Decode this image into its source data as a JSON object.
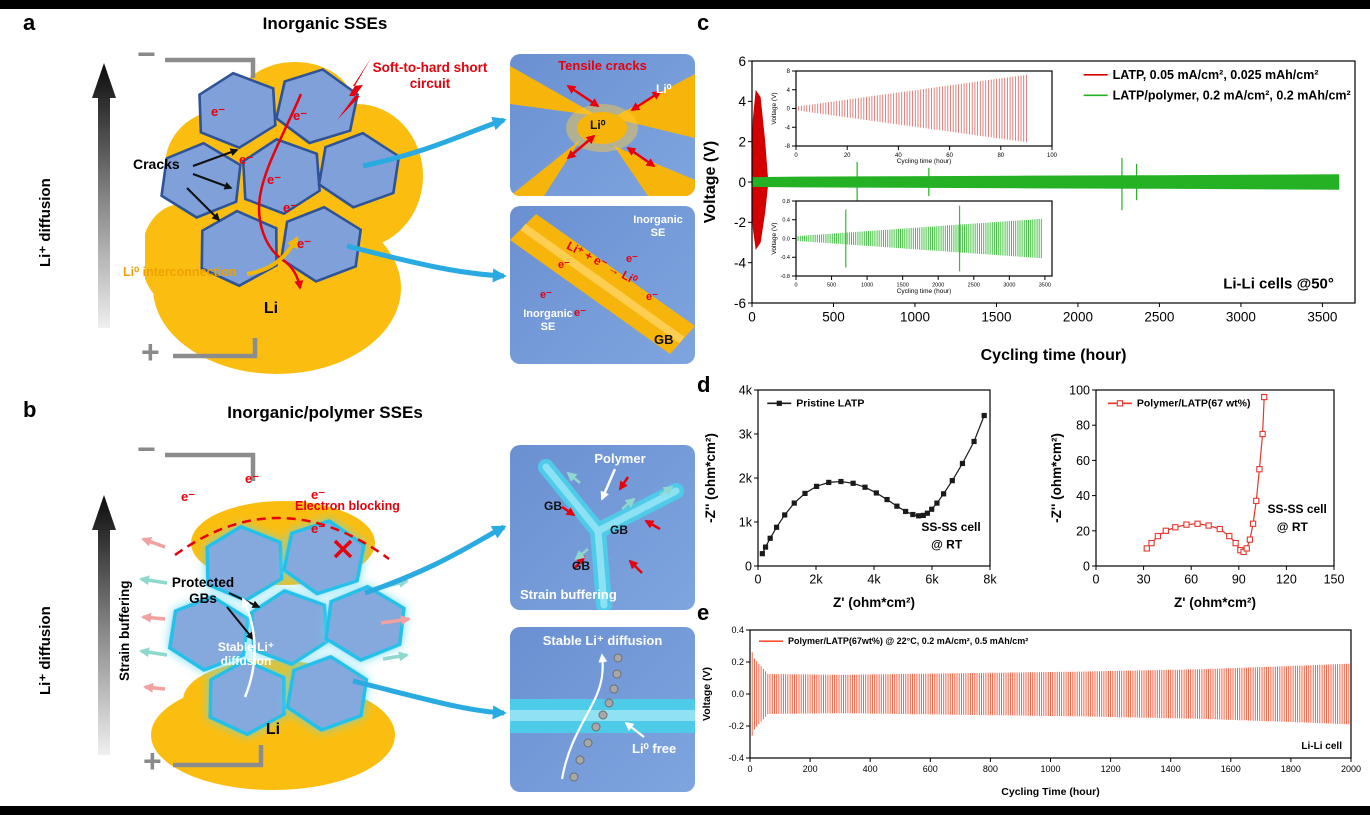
{
  "panel_a": {
    "label": "a",
    "title": "Inorganic SSEs",
    "li_diffusion_axis": "Li⁺ diffusion",
    "minus_sign": "−",
    "plus_sign": "+",
    "cracks_label": "Cracks",
    "short_circuit_label": "Soft-to-hard short circuit",
    "electron_label": "e⁻",
    "li_interconnection_label": "Li⁰ interconnection",
    "li_label": "Li",
    "inset_tensile": {
      "title": "Tensile cracks",
      "li0_center": "Li⁰",
      "li0_corner": "Li⁰"
    },
    "inset_gb": {
      "inorganic_se_top": "Inorganic SE",
      "inorganic_se_bottom": "Inorganic SE",
      "gb_label": "GB",
      "reaction_label": "Li⁺ + e⁻ → Li⁰",
      "electron_label": "e⁻"
    }
  },
  "panel_b": {
    "label": "b",
    "title": "Inorganic/polymer SSEs",
    "li_diffusion_axis": "Li⁺ diffusion",
    "strain_buffering_axis": "Strain buffering",
    "minus_sign": "−",
    "plus_sign": "+",
    "electron_label": "e⁻",
    "electron_blocking_label": "Electron blocking",
    "protected_gbs_label": "Protected GBs",
    "stable_diffusion_label": "Stable Li⁺ diffusion",
    "li_label": "Li",
    "inset_polymer": {
      "polymer_label": "Polymer",
      "gb_label_1": "GB",
      "gb_label_2": "GB",
      "gb_label_3": "GB",
      "strain_buffering_label": "Strain buffering"
    },
    "inset_diffusion": {
      "title": "Stable Li⁺ diffusion",
      "li0_free_label": "Li⁰ free"
    }
  },
  "panel_c": {
    "label": "c"
  },
  "panel_d": {
    "label": "d"
  },
  "panel_e": {
    "label": "e"
  },
  "chart_data": [
    {
      "id": "c_main",
      "type": "line",
      "xlabel": "Cycling time (hour)",
      "ylabel": "Voltage (V)",
      "xlim": [
        0,
        3700
      ],
      "ylim": [
        -6,
        6
      ],
      "xticks": [
        0,
        500,
        1000,
        1500,
        2000,
        2500,
        3000,
        3500
      ],
      "yticks": [
        -6,
        -4,
        -2,
        0,
        2,
        4,
        6
      ],
      "margin": {
        "l": 52,
        "r": 10,
        "t": 36,
        "b": 62
      },
      "fonts": {
        "tick": 13.5,
        "label": 16,
        "legend": 12.5
      },
      "series": [
        {
          "name": "LATP",
          "type": "envelope",
          "color": "#D40000",
          "x": [
            0,
            8,
            25,
            50,
            78,
            95
          ],
          "upper": [
            0.8,
            3.1,
            4.5,
            4.2,
            2.0,
            0.2
          ],
          "lower": [
            -0.7,
            -2.3,
            -3.3,
            -3.0,
            -1.5,
            -0.2
          ]
        },
        {
          "name": "LATP/polymer",
          "type": "envelope",
          "color": "#24B224",
          "x": [
            0,
            300,
            900,
            1700,
            2500,
            3200,
            3600
          ],
          "upper": [
            0.22,
            0.24,
            0.26,
            0.29,
            0.31,
            0.34,
            0.36
          ],
          "lower": [
            -0.22,
            -0.24,
            -0.26,
            -0.29,
            -0.31,
            -0.34,
            -0.36
          ]
        },
        {
          "type": "vlines",
          "color": "#24B224",
          "lines": [
            {
              "x": 645,
              "y1": -1.0,
              "y2": 1.0
            },
            {
              "x": 1085,
              "y1": -0.7,
              "y2": 0.7
            },
            {
              "x": 2270,
              "y1": -1.4,
              "y2": 1.2
            },
            {
              "x": 2360,
              "y1": -0.9,
              "y2": 0.9
            }
          ]
        }
      ],
      "legend": {
        "x": 0.55,
        "y": 0.02,
        "items": [
          {
            "label": "LATP, 0.05 mA/cm², 0.025 mAh/cm²",
            "color": "#D40000"
          },
          {
            "label": "LATP/polymer, 0.2 mA/cm², 0.2 mAh/cm²",
            "color": "#24B224"
          }
        ]
      },
      "annotations": [
        {
          "text": "Li-Li cells @50°",
          "x": 0.965,
          "y": 0.94,
          "align": "end",
          "bold": true,
          "size": 15
        }
      ]
    },
    {
      "id": "c_inset_top",
      "type": "line",
      "xlabel": "Cycling time (hour)",
      "ylabel": "Voltage (V)",
      "xlim": [
        0,
        100
      ],
      "ylim": [
        -8,
        8
      ],
      "xticks": [
        0,
        20,
        40,
        60,
        80,
        100
      ],
      "yticks": [
        -8,
        -4,
        0,
        4,
        8
      ],
      "margin": {
        "l": 26,
        "r": 8,
        "t": 5,
        "b": 22
      },
      "fonts": {
        "tick": 6,
        "label": 6.5,
        "legend": 6
      },
      "label_weight": "normal",
      "series": [
        {
          "type": "stripes",
          "color": "#E2706E",
          "x": [
            0,
            90
          ],
          "amp": [
            0.4,
            7.2
          ],
          "n": 85
        }
      ]
    },
    {
      "id": "c_inset_bottom",
      "type": "line",
      "xlabel": "Cycling time (hour)",
      "ylabel": "Voltage (V)",
      "xlim": [
        0,
        3600
      ],
      "ylim": [
        -0.8,
        0.8
      ],
      "xticks": [
        0,
        500,
        1000,
        1500,
        2000,
        2500,
        3000,
        3500
      ],
      "yticks": [
        -0.8,
        -0.4,
        0,
        0.4,
        0.8
      ],
      "ytick_labels": [
        "-0.8",
        "-0.4",
        "0.0",
        "0.4",
        "0.8"
      ],
      "margin": {
        "l": 26,
        "r": 8,
        "t": 5,
        "b": 22
      },
      "fonts": {
        "tick": 5.5,
        "label": 6.5,
        "legend": 6
      },
      "label_weight": "normal",
      "series": [
        {
          "type": "stripes",
          "color": "#2FBF2F",
          "x": [
            0,
            3450
          ],
          "amp": [
            0.05,
            0.42
          ],
          "n": 115
        },
        {
          "type": "vlines",
          "color": "#2FBF2F",
          "lines": [
            {
              "x": 700,
              "y1": -0.62,
              "y2": 0.62
            },
            {
              "x": 2300,
              "y1": -0.7,
              "y2": 0.7
            }
          ]
        }
      ]
    },
    {
      "id": "d_left",
      "type": "scatter",
      "xlabel": "Z' (ohm*cm²)",
      "ylabel": "-Z'' (ohm*cm²)",
      "xlim": [
        0,
        8000
      ],
      "ylim": [
        0,
        4000
      ],
      "xticks": [
        0,
        2000,
        4000,
        6000,
        8000
      ],
      "xtick_labels": [
        "0",
        "2k",
        "4k",
        "6k",
        "8k"
      ],
      "yticks": [
        0,
        1000,
        2000,
        3000,
        4000
      ],
      "ytick_labels": [
        "0",
        "1k",
        "2k",
        "3k",
        "4k"
      ],
      "margin": {
        "l": 56,
        "r": 12,
        "t": 10,
        "b": 46
      },
      "fonts": {
        "tick": 12.5,
        "label": 13.5,
        "legend": 10.5
      },
      "series": [
        {
          "name": "Pristine LATP",
          "type": "line",
          "color": "#1a1a1a",
          "marker": "square-filled",
          "x": [
            150,
            260,
            420,
            640,
            920,
            1250,
            1620,
            2020,
            2440,
            2860,
            3280,
            3690,
            4080,
            4450,
            4790,
            5090,
            5340,
            5540,
            5700,
            5840,
            5990,
            6170,
            6400,
            6700,
            7050,
            7450,
            7800
          ],
          "y": [
            280,
            430,
            630,
            880,
            1160,
            1430,
            1650,
            1810,
            1900,
            1920,
            1880,
            1790,
            1660,
            1510,
            1360,
            1240,
            1170,
            1140,
            1150,
            1200,
            1290,
            1430,
            1640,
            1940,
            2330,
            2830,
            3420
          ]
        }
      ],
      "legend": {
        "x": 0.04,
        "y": 0.03,
        "items": [
          {
            "label": "Pristine LATP",
            "color": "#1a1a1a",
            "marker": "square-filled"
          }
        ]
      },
      "annotations": [
        {
          "text": "SS-SS cell",
          "x": 0.96,
          "y": 0.8,
          "align": "end",
          "bold": true,
          "size": 12
        },
        {
          "text": "@ RT",
          "x": 0.88,
          "y": 0.9,
          "align": "end",
          "bold": true,
          "size": 12
        }
      ]
    },
    {
      "id": "d_right",
      "type": "scatter",
      "xlabel": "Z' (ohm*cm²)",
      "ylabel": "-Z'' (ohm*cm²)",
      "xlim": [
        0,
        150
      ],
      "ylim": [
        0,
        100
      ],
      "xticks": [
        0,
        30,
        60,
        90,
        120,
        150
      ],
      "yticks": [
        0,
        20,
        40,
        60,
        80,
        100
      ],
      "margin": {
        "l": 48,
        "r": 14,
        "t": 10,
        "b": 46
      },
      "fonts": {
        "tick": 12.5,
        "label": 13.5,
        "legend": 10.5
      },
      "series": [
        {
          "name": "Polymer/LATP(67 wt%)",
          "type": "line",
          "color": "#E8352B",
          "marker": "square-open",
          "x": [
            32,
            35,
            39,
            44,
            50,
            57,
            64,
            71,
            78,
            84,
            88,
            91,
            93,
            95,
            97,
            99,
            101,
            103,
            105,
            106
          ],
          "y": [
            10,
            13,
            17,
            20,
            22,
            23.5,
            24,
            23,
            21,
            17,
            13,
            9,
            8,
            10,
            15,
            24,
            37,
            55,
            75,
            96
          ]
        }
      ],
      "legend": {
        "x": 0.05,
        "y": 0.03,
        "items": [
          {
            "label": "Polymer/LATP(67 wt%)",
            "color": "#E8352B",
            "marker": "square-open"
          }
        ]
      },
      "annotations": [
        {
          "text": "SS-SS cell",
          "x": 0.97,
          "y": 0.7,
          "align": "end",
          "bold": true,
          "size": 12
        },
        {
          "text": "@ RT",
          "x": 0.89,
          "y": 0.8,
          "align": "end",
          "bold": true,
          "size": 12
        }
      ]
    },
    {
      "id": "e_main",
      "type": "line",
      "xlabel": "Cycling Time (hour)",
      "ylabel": "Voltage (V)",
      "xlim": [
        0,
        2000
      ],
      "ylim": [
        -0.4,
        0.4
      ],
      "xticks": [
        0,
        200,
        400,
        600,
        800,
        1000,
        1200,
        1400,
        1600,
        1800,
        2000
      ],
      "yticks": [
        -0.4,
        -0.2,
        0,
        0.2,
        0.4
      ],
      "ytick_labels": [
        "-0.4",
        "-0.2",
        "0.0",
        "0.2",
        "0.4"
      ],
      "margin": {
        "l": 50,
        "r": 14,
        "t": 14,
        "b": 42
      },
      "fonts": {
        "tick": 9,
        "label": 10.5,
        "legend": 9
      },
      "series": [
        {
          "name": "Polymer/LATP(67wt%)",
          "type": "stripes",
          "color": "#FF5030",
          "x": [
            0,
            15,
            60,
            300,
            700,
            1100,
            1500,
            1800,
            2000
          ],
          "amp": [
            0.3,
            0.22,
            0.125,
            0.12,
            0.13,
            0.14,
            0.155,
            0.175,
            0.19
          ],
          "n": 270
        }
      ],
      "legend": {
        "x": 0.015,
        "y": 0.03,
        "items": [
          {
            "label": "Polymer/LATP(67wt%) @ 22°C, 0.2 mA/cm², 0.5 mAh/cm²",
            "color": "#FF5030"
          }
        ]
      },
      "annotations": [
        {
          "text": "Li-Li cell",
          "x": 0.985,
          "y": 0.93,
          "align": "end",
          "bold": true,
          "size": 10
        }
      ]
    }
  ]
}
